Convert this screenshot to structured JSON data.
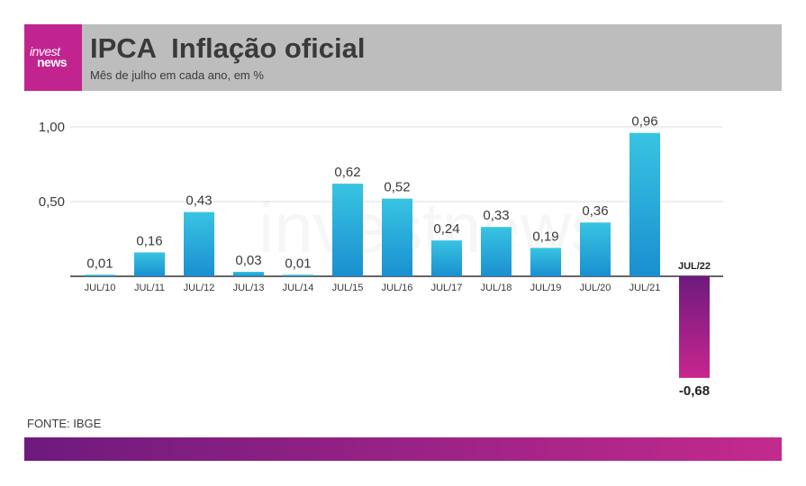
{
  "header": {
    "logo_line1": "invest",
    "logo_line2": "news",
    "title": "IPCA  Inflação oficial",
    "subtitle": "Mês de julho em cada ano, em %"
  },
  "chart_data": {
    "type": "bar",
    "categories": [
      "JUL/10",
      "JUL/11",
      "JUL/12",
      "JUL/13",
      "JUL/14",
      "JUL/15",
      "JUL/16",
      "JUL/17",
      "JUL/18",
      "JUL/19",
      "JUL/20",
      "JUL/21",
      "JUL/22"
    ],
    "values": [
      0.01,
      0.16,
      0.43,
      0.03,
      0.01,
      0.62,
      0.52,
      0.24,
      0.33,
      0.19,
      0.36,
      0.96,
      -0.68
    ],
    "value_labels": [
      "0,01",
      "0,16",
      "0,43",
      "0,03",
      "0,01",
      "0,62",
      "0,52",
      "0,24",
      "0,33",
      "0,19",
      "0,36",
      "0,96",
      "-0,68"
    ],
    "y_ticks": [
      0.5,
      1.0
    ],
    "y_tick_labels": [
      "0,50",
      "1,00"
    ],
    "ylim": [
      -0.68,
      1.0
    ],
    "grid": true,
    "colors": {
      "positive_top": "#38c4e2",
      "positive_bottom": "#1a8fd0",
      "negative_top": "#6e1a7e",
      "negative_bottom": "#c8268e",
      "gridline": "#dddddd",
      "axis": "#333333",
      "text": "#3a3a3a"
    }
  },
  "watermark": "investnews",
  "source": "FONTE: IBGE",
  "colors": {
    "brand": "#c2248f",
    "header_bg": "#bdbdbd",
    "bottom_bar_start": "#6e1a7e",
    "bottom_bar_end": "#c32a8c"
  }
}
